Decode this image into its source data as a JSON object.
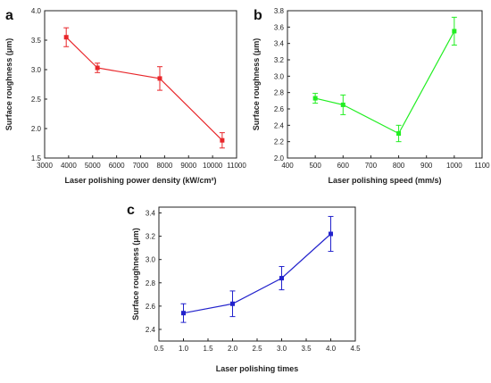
{
  "chart_data": [
    {
      "panel": "a",
      "type": "line",
      "xlabel": "Laser polishing power density  (kW/cm²)",
      "ylabel": "Surface roughness (μm)",
      "xlim": [
        3000,
        11000
      ],
      "ylim": [
        1.5,
        4.0
      ],
      "xticks": [
        "3000",
        "4000",
        "5000",
        "6000",
        "7000",
        "8000",
        "9000",
        "10000",
        "11000"
      ],
      "yticks": [
        "1.5",
        "2.0",
        "2.5",
        "3.0",
        "3.5",
        "4.0"
      ],
      "color": "#e8262a",
      "series": [
        {
          "x": [
            3900,
            5200,
            7800,
            10400
          ],
          "values": [
            3.55,
            3.03,
            2.85,
            1.8
          ],
          "error": [
            0.16,
            0.08,
            0.2,
            0.13
          ]
        }
      ]
    },
    {
      "panel": "b",
      "type": "line",
      "xlabel": "Laser polishing speed  (mm/s)",
      "ylabel": "Surface roughness (μm)",
      "xlim": [
        400,
        1100
      ],
      "ylim": [
        2.0,
        3.8
      ],
      "xticks": [
        "400",
        "500",
        "600",
        "700",
        "800",
        "900",
        "1000",
        "1100"
      ],
      "yticks": [
        "2.0",
        "2.2",
        "2.4",
        "2.6",
        "2.8",
        "3.0",
        "3.2",
        "3.4",
        "3.6",
        "3.8"
      ],
      "color": "#22ee22",
      "series": [
        {
          "x": [
            500,
            600,
            800,
            1000
          ],
          "values": [
            2.73,
            2.65,
            2.3,
            3.55
          ],
          "error": [
            0.06,
            0.12,
            0.1,
            0.17
          ]
        }
      ]
    },
    {
      "panel": "c",
      "type": "line",
      "xlabel": "Laser polishing times",
      "ylabel": "Surface roughness (μm)",
      "xlim": [
        0.5,
        4.5
      ],
      "ylim": [
        2.3,
        3.45
      ],
      "xticks": [
        "0.5",
        "1.0",
        "1.5",
        "2.0",
        "2.5",
        "3.0",
        "3.5",
        "4.0",
        "4.5"
      ],
      "yticks": [
        "2.4",
        "2.6",
        "2.8",
        "3.0",
        "3.2",
        "3.4"
      ],
      "color": "#2222cc",
      "series": [
        {
          "x": [
            1.0,
            2.0,
            3.0,
            4.0
          ],
          "values": [
            2.54,
            2.62,
            2.84,
            3.22
          ],
          "error": [
            0.08,
            0.11,
            0.1,
            0.15
          ]
        }
      ]
    }
  ]
}
